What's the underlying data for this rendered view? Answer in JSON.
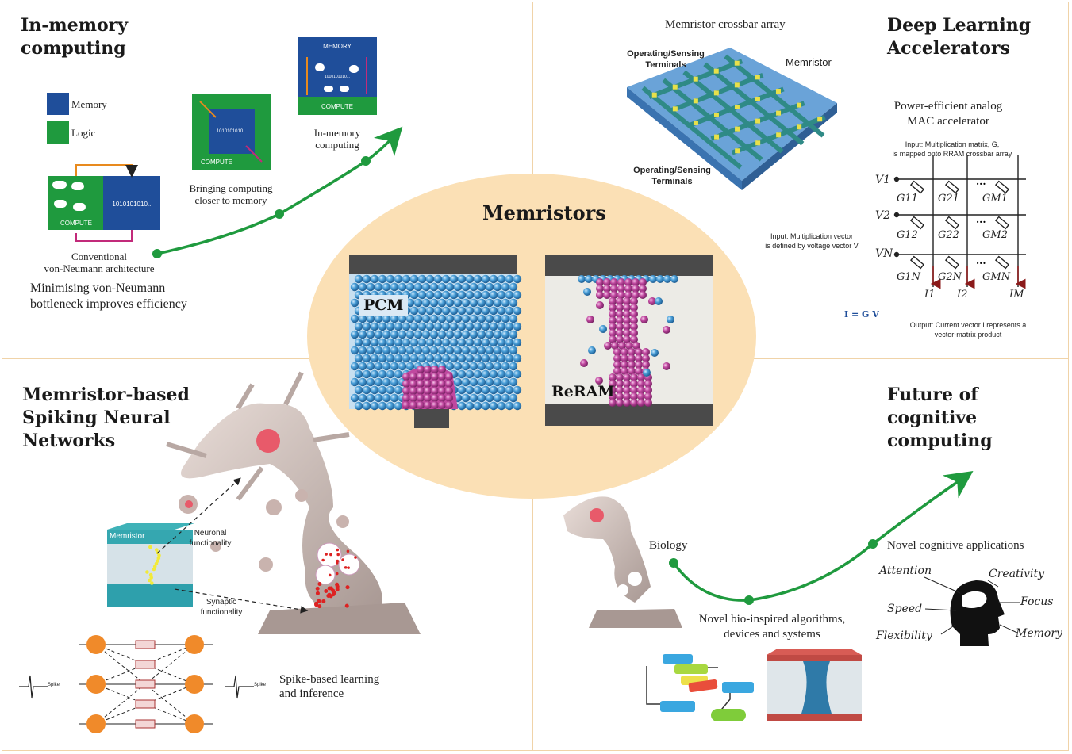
{
  "center": {
    "title": "Memristors",
    "pcm": "PCM",
    "reram": "ReRAM"
  },
  "q1": {
    "title": "In-memory\ncomputing",
    "legend_memory": "Memory",
    "legend_logic": "Logic",
    "chip_bits": "1010101010...",
    "chip_compute": "COMPUTE",
    "small_bits": "1010101010...",
    "small_compute": "COMPUTE",
    "imc_memory": "MEMORY",
    "imc_bits": "1010101010...",
    "imc_compute": "COMPUTE",
    "label_conventional": "Conventional\nvon-Neumann architecture",
    "label_bringing": "Bringing computing\ncloser to memory",
    "label_inmemory": "In-memory\ncomputing",
    "caption": "Minimising von-Neumann\nbottleneck improves efficiency"
  },
  "q2": {
    "title": "Deep Learning\nAccelerators",
    "crossbar_title": "Memristor crossbar array",
    "terminals_top": "Operating/Sensing\nTerminals",
    "terminals_bottom": "Operating/Sensing\nTerminals",
    "memristor": "Memristor",
    "power_efficient": "Power-efficient analog\nMAC accelerator",
    "input_matrix": "Input: Multiplication matrix, G,\nis mapped onto RRAM crossbar array",
    "input_vector": "Input: Multiplication vector\nis defined by voltage vector V",
    "output": "Output: Current vector I represents a\nvector-matrix product",
    "equation": "I = G V",
    "v_labels": [
      "V1",
      "V2",
      "VN"
    ],
    "g_labels": [
      "G11",
      "G21",
      "GM1",
      "G12",
      "G22",
      "GM2",
      "G1N",
      "G2N",
      "GMN"
    ],
    "i_labels": [
      "I1",
      "I2",
      "IM"
    ],
    "dots": "..."
  },
  "q3": {
    "title": "Memristor-based\nSpiking Neural\nNetworks",
    "memristor": "Memristor",
    "neuronal": "Neuronal\nfunctionality",
    "synaptic": "Synaptic\nfunctionality",
    "spike_label": "Spike-based learning\nand inference",
    "spike_in": "Spike",
    "spike_out": "Spike"
  },
  "q4": {
    "title": "Future of cognitive\ncomputing",
    "biology": "Biology",
    "algorithms": "Novel bio-inspired algorithms,\ndevices and systems",
    "applications": "Novel cognitive applications",
    "attention": "Attention",
    "creativity": "Creativity",
    "speed": "Speed",
    "focus": "Focus",
    "flexibility": "Flexibility",
    "memory": "Memory"
  },
  "colors": {
    "border": "#f0d3a8",
    "ellipse": "#fbe0b5",
    "blue": "#4a9fd8",
    "magenta": "#c0489f",
    "green": "#1f9a3e",
    "navy": "#1f4e9a"
  }
}
